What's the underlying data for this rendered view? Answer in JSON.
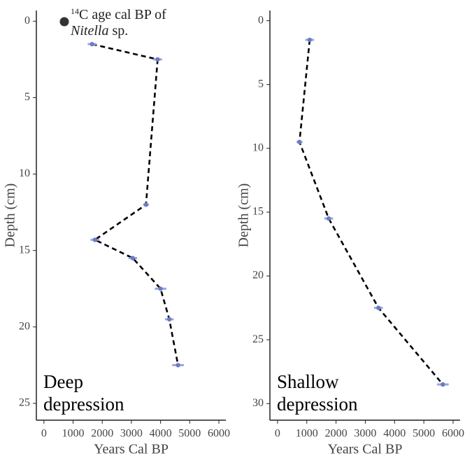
{
  "chart_data": [
    {
      "type": "scatter",
      "panel_label": [
        "Deep",
        "depression"
      ],
      "xlabel": "Years Cal BP",
      "ylabel": "Depth (cm)",
      "legend": {
        "superscript": "14",
        "text": "C age cal BP of",
        "italic": "Nitella",
        "suffix": "sp."
      },
      "x": [
        1650,
        3900,
        3500,
        1750,
        3050,
        4000,
        4300,
        4600
      ],
      "y": [
        1.5,
        2.5,
        12,
        14.3,
        15.5,
        17.5,
        19.5,
        22.5
      ],
      "errors": [
        150,
        150,
        100,
        150,
        150,
        200,
        150,
        200
      ],
      "color": "#6a7cc4",
      "line": "dashed",
      "xlim": [
        -260,
        6240
      ],
      "ylim": [
        -0.7,
        26.1
      ],
      "xticks": [
        0,
        1000,
        2000,
        3000,
        4000,
        5000,
        6000
      ],
      "yticks": [
        0,
        5,
        10,
        15,
        20,
        25
      ]
    },
    {
      "type": "scatter",
      "panel_label": [
        "Shallow",
        "depression"
      ],
      "xlabel": "Years Cal BP",
      "ylabel": "Depth (cm)",
      "x": [
        1100,
        750,
        1750,
        3450,
        5650
      ],
      "y": [
        1.5,
        9.5,
        15.5,
        22.5,
        28.5
      ],
      "errors": [
        150,
        100,
        150,
        150,
        200
      ],
      "color": "#6a7cc4",
      "line": "dashed",
      "xlim": [
        -260,
        6240
      ],
      "ylim": [
        -0.8,
        31.3
      ],
      "xticks": [
        0,
        1000,
        2000,
        3000,
        4000,
        5000,
        6000
      ],
      "yticks": [
        0,
        5,
        10,
        15,
        20,
        25,
        30
      ]
    }
  ]
}
